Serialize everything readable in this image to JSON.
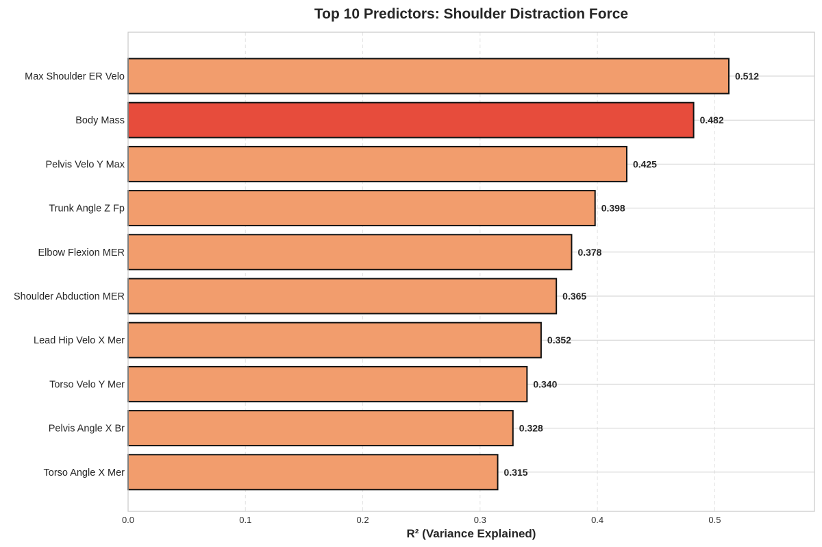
{
  "chart_data": {
    "type": "bar",
    "orientation": "horizontal",
    "title": "Top 10 Predictors: Shoulder Distraction Force",
    "xlabel": "R² (Variance Explained)",
    "ylabel": "",
    "xlim": [
      0,
      0.585
    ],
    "xticks": [
      0.0,
      0.1,
      0.2,
      0.3,
      0.4,
      0.5
    ],
    "xtick_labels": [
      "0.0",
      "0.1",
      "0.2",
      "0.3",
      "0.4",
      "0.5"
    ],
    "grid": true,
    "legend": "none",
    "categories": [
      "Max Shoulder ER Velo",
      "Body Mass",
      "Pelvis Velo Y Max",
      "Trunk Angle Z Fp",
      "Elbow Flexion MER",
      "Shoulder Abduction MER",
      "Lead Hip Velo X Mer",
      "Torso Velo Y Mer",
      "Pelvis Angle X Br",
      "Torso Angle X Mer"
    ],
    "values": [
      0.512,
      0.482,
      0.425,
      0.398,
      0.378,
      0.365,
      0.352,
      0.34,
      0.328,
      0.315
    ],
    "value_labels": [
      "0.512",
      "0.482",
      "0.425",
      "0.398",
      "0.378",
      "0.365",
      "0.352",
      "0.340",
      "0.328",
      "0.315"
    ],
    "bar_colors": [
      "#f29d6d",
      "#e74c3c",
      "#f29d6d",
      "#f29d6d",
      "#f29d6d",
      "#f29d6d",
      "#f29d6d",
      "#f29d6d",
      "#f29d6d",
      "#f29d6d"
    ],
    "highlighted_category": "Body Mass",
    "colors": {
      "default_bar": "#f29d6d",
      "highlight_bar": "#e74c3c",
      "bar_edge": "#111111"
    }
  }
}
